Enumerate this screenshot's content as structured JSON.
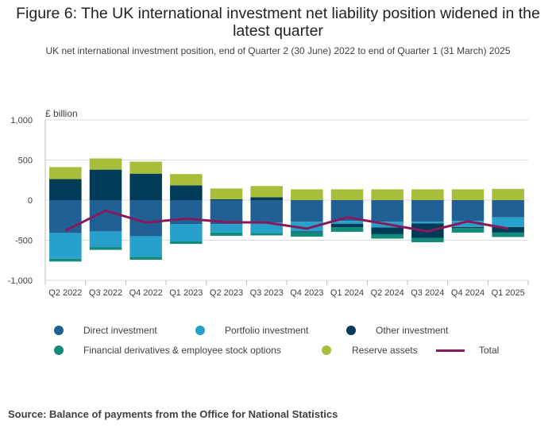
{
  "title": "Figure 6: The UK international investment net liability position widened in the latest quarter",
  "subtitle": "UK net international investment position, end of Quarter 2 (30 June) 2022 to end of Quarter 1 (31 March) 2025",
  "unit_label": "£ billion",
  "source": "Source: Balance of payments from the Office for National Statistics",
  "chart_data": {
    "type": "bar",
    "stacked": true,
    "categories": [
      "Q2 2022",
      "Q3 2022",
      "Q4 2022",
      "Q1 2023",
      "Q2 2023",
      "Q3 2023",
      "Q4 2023",
      "Q1 2024",
      "Q2 2024",
      "Q3 2024",
      "Q4 2024",
      "Q1 2025"
    ],
    "ylim": [
      -1000,
      1000
    ],
    "yticks": [
      1000,
      500,
      0,
      -500,
      -1000
    ],
    "ytick_labels": [
      "1,000",
      "500",
      "0",
      "-500",
      "-1,000"
    ],
    "ylabel": "£ billion",
    "grid": true,
    "legend_position": "bottom",
    "series": [
      {
        "name": "Direct investment",
        "color": "#206095",
        "values": [
          -410,
          -390,
          -450,
          -300,
          -300,
          -280,
          -270,
          -260,
          -270,
          -270,
          -260,
          -215
        ]
      },
      {
        "name": "Portfolio investment",
        "color": "#27a0cc",
        "values": [
          -320,
          -195,
          -255,
          -215,
          -105,
          -130,
          -120,
          -35,
          -70,
          -20,
          -75,
          -120
        ]
      },
      {
        "name": "Other investment",
        "color": "#003c57",
        "values": [
          262,
          380,
          330,
          185,
          10,
          35,
          -10,
          -45,
          -85,
          -180,
          -15,
          -70
        ]
      },
      {
        "name": "Financial derivatives & employee stock options",
        "color": "#118c7b",
        "values": [
          -35,
          -35,
          -38,
          -30,
          -40,
          -30,
          -55,
          -55,
          -55,
          -55,
          -55,
          -55
        ]
      },
      {
        "name": "Reserve assets",
        "color": "#a8bd3a",
        "values": [
          150,
          140,
          150,
          140,
          135,
          140,
          135,
          135,
          135,
          135,
          135,
          140
        ]
      },
      {
        "name": "Total",
        "color": "#871a5b",
        "type": "line",
        "values": [
          -380,
          -130,
          -280,
          -230,
          -275,
          -280,
          -355,
          -215,
          -300,
          -390,
          -265,
          -355
        ]
      }
    ]
  }
}
